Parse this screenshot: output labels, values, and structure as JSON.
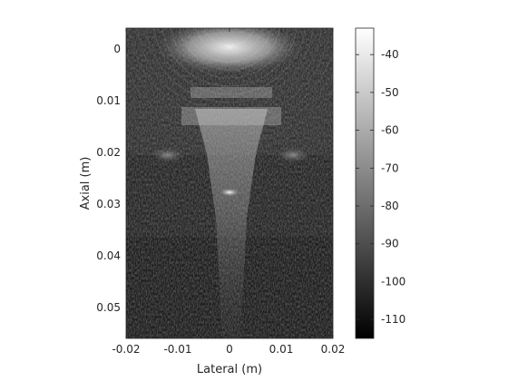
{
  "chart_data": {
    "type": "heatmap",
    "title": "",
    "xlabel": "Lateral (m)",
    "ylabel": "Axial (m)",
    "xlim": [
      -0.02,
      0.02
    ],
    "ylim": [
      -0.004,
      0.056
    ],
    "y_reversed": true,
    "x_ticks": [
      -0.02,
      -0.01,
      0,
      0.01,
      0.02
    ],
    "x_tick_labels": [
      "-0.02",
      "-0.01",
      "0",
      "0.01",
      "0.02"
    ],
    "y_ticks": [
      0,
      0.01,
      0.02,
      0.03,
      0.04,
      0.05
    ],
    "y_tick_labels": [
      "0",
      "0.01",
      "0.02",
      "0.03",
      "0.04",
      "0.05"
    ],
    "colormap": "gray",
    "color_range_db": [
      -115,
      -33
    ],
    "colorbar_ticks": [
      -40,
      -50,
      -60,
      -70,
      -80,
      -90,
      -100,
      -110
    ],
    "colorbar_tick_labels": [
      "-40",
      "-50",
      "-60",
      "-70",
      "-80",
      "-90",
      "-100",
      "-110"
    ],
    "features": [
      {
        "kind": "bright-cap",
        "x": 0.0,
        "y": 0.0,
        "value_db": -38
      },
      {
        "kind": "reflector",
        "x": 0.0,
        "y": 0.0275,
        "value_db": -42
      },
      {
        "kind": "side-blob",
        "x": -0.012,
        "y": 0.0205,
        "value_db": -72
      },
      {
        "kind": "side-blob",
        "x": 0.012,
        "y": 0.0205,
        "value_db": -72
      }
    ],
    "grid": false,
    "legend": "none"
  }
}
